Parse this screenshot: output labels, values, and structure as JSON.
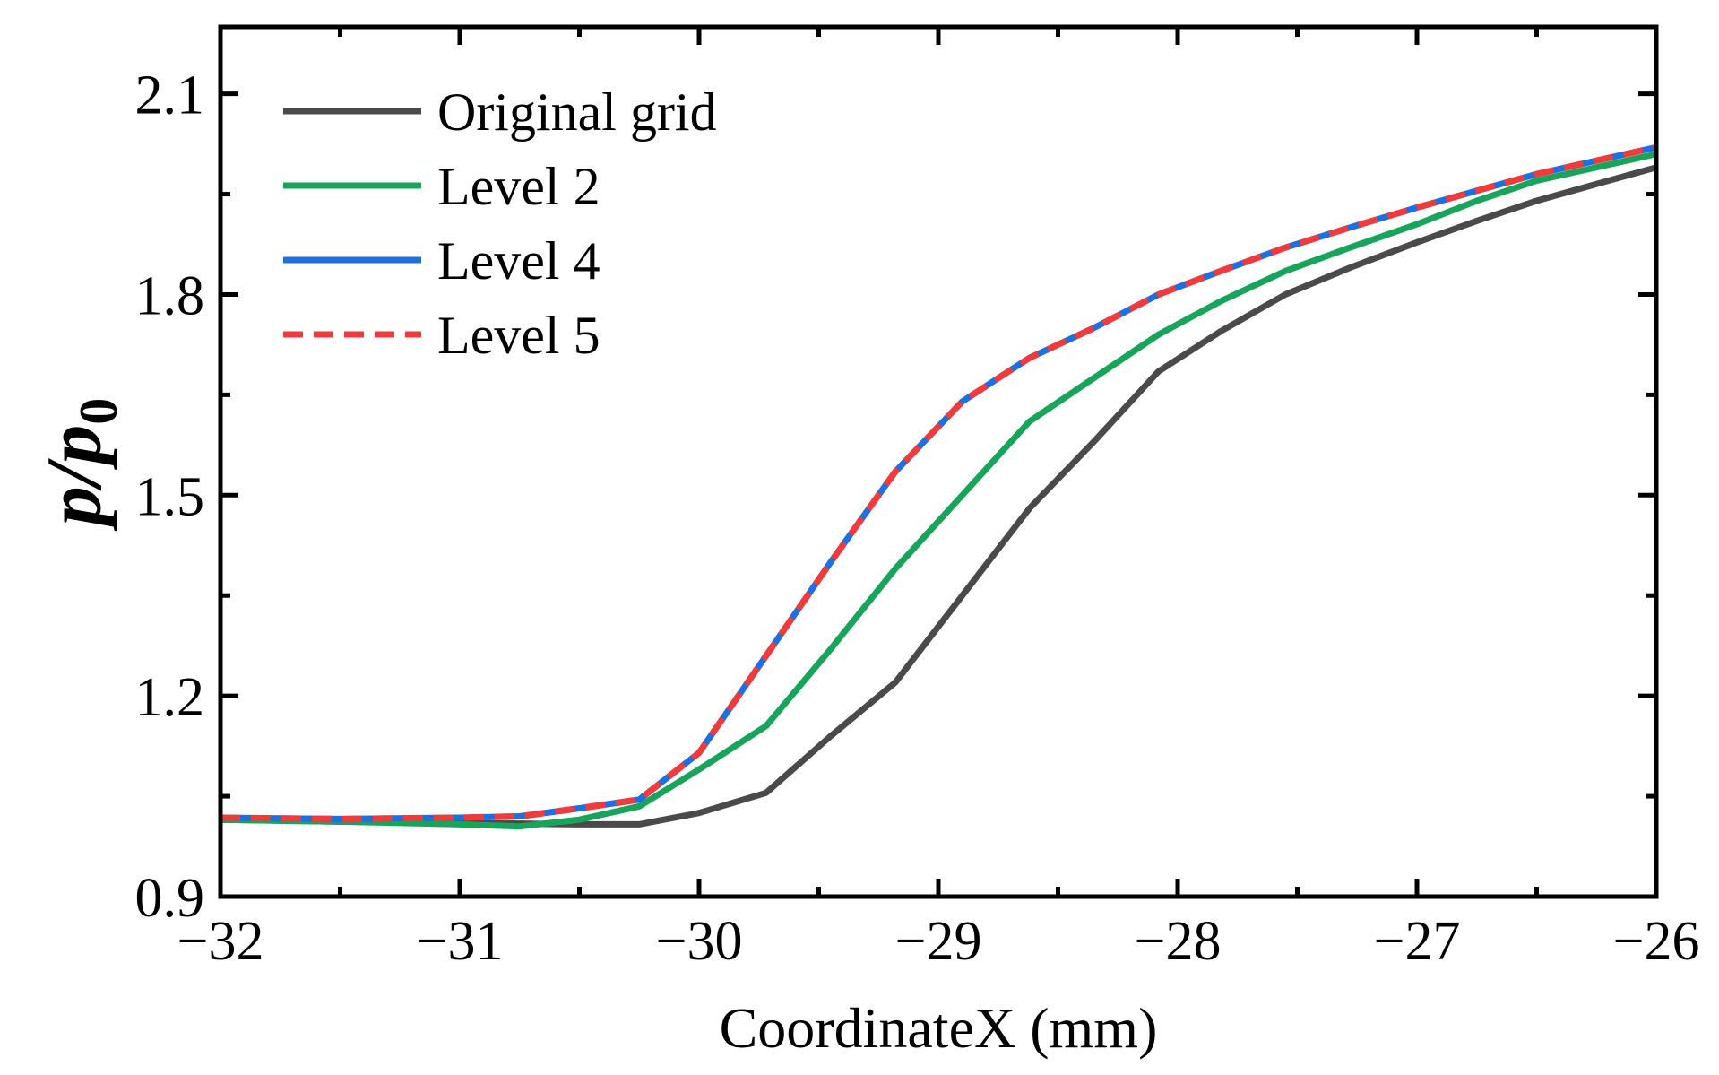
{
  "chart_data": {
    "type": "line",
    "title": "",
    "xlabel": "CoordinateX (mm)",
    "ylabel": {
      "symbol": "p/p",
      "subscript": "0"
    },
    "xlim": [
      -32,
      -26
    ],
    "ylim": [
      0.9,
      2.2
    ],
    "xticks": [
      -32,
      -31,
      -30,
      -29,
      -28,
      -27,
      -26
    ],
    "xtick_labels": [
      "−32",
      "−31",
      "−30",
      "−29",
      "−28",
      "−27",
      "−26"
    ],
    "yticks": [
      0.9,
      1.2,
      1.5,
      1.8,
      2.1
    ],
    "ytick_labels": [
      "0.9",
      "1.2",
      "1.5",
      "1.8",
      "2.1"
    ],
    "grid": false,
    "legend_position": "top-left",
    "series": [
      {
        "name": "Original grid",
        "color": "#4a4a4a",
        "dash": "solid",
        "x": [
          -32,
          -31.5,
          -31,
          -30.5,
          -30.25,
          -30.0,
          -29.72,
          -29.45,
          -29.18,
          -28.9,
          -28.62,
          -28.35,
          -28.08,
          -27.82,
          -27.55,
          -27.28,
          -27.0,
          -26.75,
          -26.5,
          -26.25,
          -26.0
        ],
        "y": [
          1.015,
          1.012,
          1.01,
          1.008,
          1.008,
          1.025,
          1.055,
          1.14,
          1.22,
          1.35,
          1.48,
          1.58,
          1.685,
          1.745,
          1.8,
          1.84,
          1.878,
          1.91,
          1.94,
          1.965,
          1.99
        ]
      },
      {
        "name": "Level 2",
        "color": "#18a45b",
        "dash": "solid",
        "x": [
          -32,
          -31.5,
          -31,
          -30.75,
          -30.5,
          -30.25,
          -30.0,
          -29.72,
          -29.45,
          -29.18,
          -28.9,
          -28.62,
          -28.35,
          -28.08,
          -27.82,
          -27.55,
          -27.28,
          -27.0,
          -26.75,
          -26.5,
          -26.25,
          -26.0
        ],
        "y": [
          1.015,
          1.012,
          1.008,
          1.005,
          1.015,
          1.035,
          1.09,
          1.155,
          1.27,
          1.39,
          1.5,
          1.61,
          1.675,
          1.74,
          1.79,
          1.835,
          1.87,
          1.905,
          1.94,
          1.97,
          1.99,
          2.01
        ]
      },
      {
        "name": "Level 4",
        "color": "#1f6fe0",
        "dash": "solid",
        "x": [
          -32,
          -31.5,
          -31,
          -30.75,
          -30.5,
          -30.25,
          -30.0,
          -29.72,
          -29.45,
          -29.18,
          -28.9,
          -28.62,
          -28.35,
          -28.08,
          -27.82,
          -27.55,
          -27.28,
          -27.0,
          -26.75,
          -26.5,
          -26.25,
          -26.0
        ],
        "y": [
          1.018,
          1.016,
          1.018,
          1.02,
          1.032,
          1.045,
          1.115,
          1.26,
          1.4,
          1.535,
          1.64,
          1.705,
          1.75,
          1.8,
          1.835,
          1.87,
          1.9,
          1.93,
          1.955,
          1.98,
          2.0,
          2.02
        ]
      },
      {
        "name": "Level 5",
        "color": "#ef3b3b",
        "dash": "dashed",
        "x": [
          -32,
          -31.5,
          -31,
          -30.75,
          -30.5,
          -30.25,
          -30.0,
          -29.72,
          -29.45,
          -29.18,
          -28.9,
          -28.62,
          -28.35,
          -28.08,
          -27.82,
          -27.55,
          -27.28,
          -27.0,
          -26.75,
          -26.5,
          -26.25,
          -26.0
        ],
        "y": [
          1.018,
          1.016,
          1.018,
          1.02,
          1.032,
          1.045,
          1.115,
          1.26,
          1.4,
          1.535,
          1.64,
          1.705,
          1.75,
          1.8,
          1.835,
          1.87,
          1.9,
          1.93,
          1.955,
          1.98,
          2.0,
          2.02
        ]
      }
    ]
  }
}
